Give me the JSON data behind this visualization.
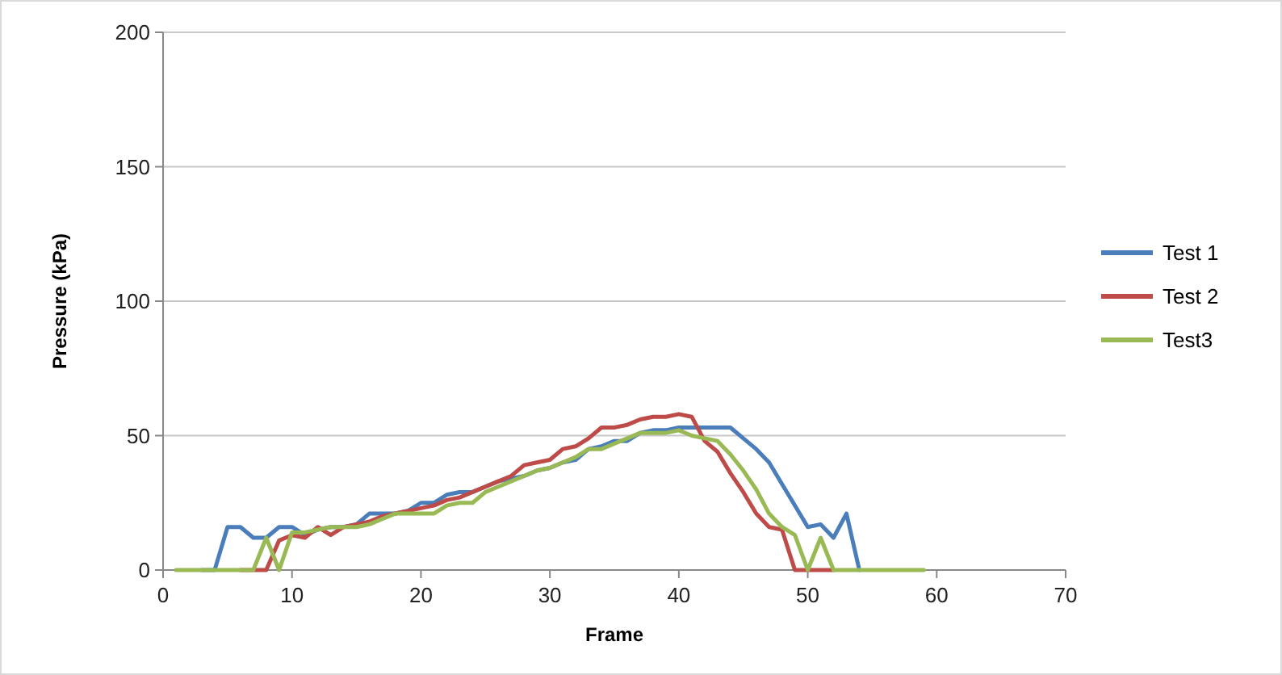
{
  "chart_data": {
    "type": "line",
    "xlabel": "Frame",
    "ylabel": "Pressure (kPa)",
    "xlim": [
      0,
      70
    ],
    "xticks": [
      0,
      10,
      20,
      30,
      40,
      50,
      60,
      70
    ],
    "ylim": [
      0,
      200
    ],
    "yticks": [
      0,
      50,
      100,
      150,
      200
    ],
    "grid": "y",
    "legend": "right",
    "marker": "none",
    "line_style": "solid",
    "series": [
      {
        "name": "Test 1",
        "color": "#4a7ebb",
        "x": [
          3,
          4,
          5,
          6,
          7,
          8,
          9,
          10,
          11,
          12,
          13,
          14,
          15,
          16,
          17,
          18,
          19,
          20,
          21,
          22,
          23,
          24,
          25,
          26,
          27,
          28,
          29,
          30,
          31,
          32,
          33,
          34,
          35,
          36,
          37,
          38,
          39,
          40,
          41,
          42,
          43,
          44,
          45,
          46,
          47,
          48,
          49,
          50,
          51,
          52,
          53,
          54
        ],
        "values": [
          0,
          0,
          16,
          16,
          12,
          12,
          16,
          16,
          13,
          15,
          16,
          16,
          17,
          21,
          21,
          21,
          22,
          25,
          25,
          28,
          29,
          29,
          31,
          33,
          34,
          35,
          37,
          38,
          40,
          41,
          45,
          46,
          48,
          48,
          51,
          52,
          52,
          53,
          53,
          53,
          53,
          53,
          49,
          45,
          40,
          32,
          24,
          16,
          17,
          12,
          21,
          0
        ]
      },
      {
        "name": "Test 2",
        "color": "#be4b48",
        "x": [
          6,
          7,
          8,
          9,
          10,
          11,
          12,
          13,
          14,
          15,
          16,
          17,
          18,
          19,
          20,
          21,
          22,
          23,
          24,
          25,
          26,
          27,
          28,
          29,
          30,
          31,
          32,
          33,
          34,
          35,
          36,
          37,
          38,
          39,
          40,
          41,
          42,
          43,
          44,
          45,
          46,
          47,
          48,
          49,
          50,
          51,
          52
        ],
        "values": [
          0,
          0,
          0,
          11,
          13,
          12,
          16,
          13,
          16,
          17,
          18,
          20,
          21,
          22,
          23,
          24,
          26,
          27,
          29,
          31,
          33,
          35,
          39,
          40,
          41,
          45,
          46,
          49,
          53,
          53,
          54,
          56,
          57,
          57,
          58,
          57,
          48,
          44,
          36,
          29,
          21,
          16,
          15,
          0,
          0,
          0,
          0
        ]
      },
      {
        "name": "Test3",
        "color": "#98b954",
        "x": [
          1,
          2,
          3,
          4,
          5,
          6,
          7,
          8,
          9,
          10,
          11,
          12,
          13,
          14,
          15,
          16,
          17,
          18,
          19,
          20,
          21,
          22,
          23,
          24,
          25,
          26,
          27,
          28,
          29,
          30,
          31,
          32,
          33,
          34,
          35,
          36,
          37,
          38,
          39,
          40,
          41,
          42,
          43,
          44,
          45,
          46,
          47,
          48,
          49,
          50,
          51,
          52,
          53,
          54,
          55,
          56,
          57,
          58,
          59
        ],
        "values": [
          0,
          0,
          0,
          0,
          0,
          0,
          0,
          12,
          0,
          14,
          14,
          15,
          16,
          16,
          16,
          17,
          19,
          21,
          21,
          21,
          21,
          24,
          25,
          25,
          29,
          31,
          33,
          35,
          37,
          38,
          40,
          42,
          45,
          45,
          47,
          49,
          51,
          51,
          51,
          52,
          50,
          49,
          48,
          43,
          37,
          30,
          21,
          16,
          13,
          0,
          12,
          0,
          0,
          0,
          0,
          0,
          0,
          0,
          0
        ]
      }
    ]
  }
}
